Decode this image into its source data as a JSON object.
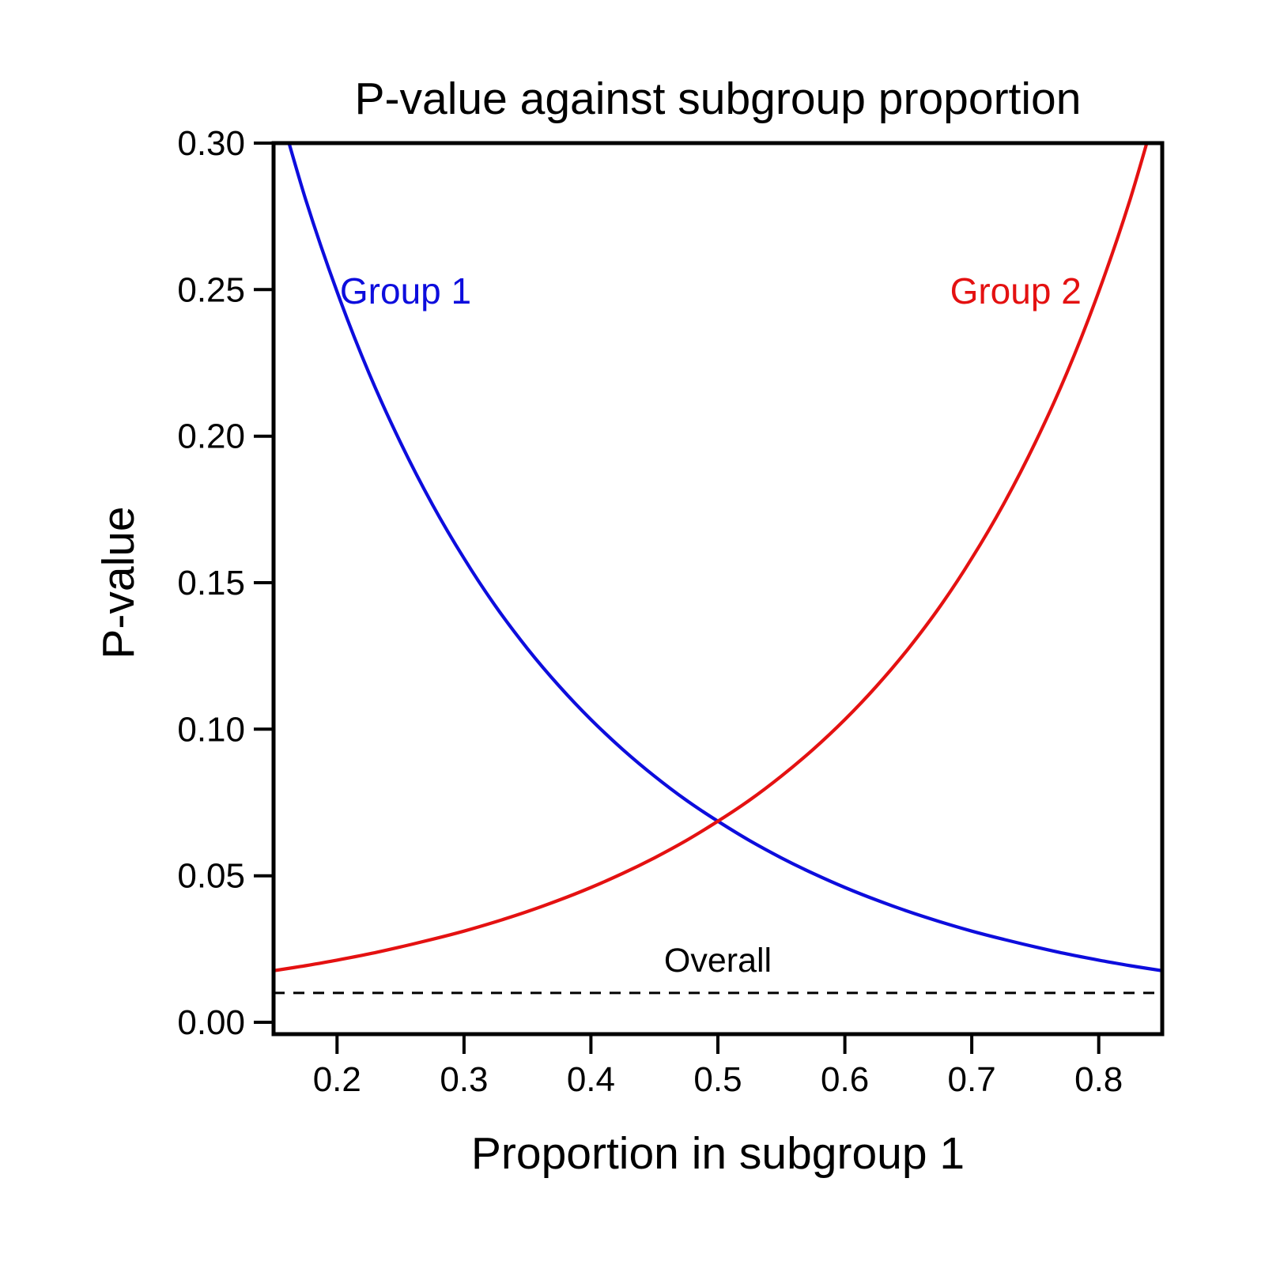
{
  "title": "P-value against subgroup proportion",
  "axes": {
    "x": {
      "label": "Proportion in subgroup 1",
      "min": 0.15,
      "max": 0.85,
      "ticks": [
        0.2,
        0.3,
        0.4,
        0.5,
        0.6,
        0.7,
        0.8
      ],
      "tick_labels": [
        "0.2",
        "0.3",
        "0.4",
        "0.5",
        "0.6",
        "0.7",
        "0.8"
      ]
    },
    "y": {
      "label": "P-value",
      "min": 0.0,
      "max": 0.3,
      "ticks": [
        0.0,
        0.05,
        0.1,
        0.15,
        0.2,
        0.25,
        0.3
      ],
      "tick_labels": [
        "0.00",
        "0.05",
        "0.10",
        "0.15",
        "0.20",
        "0.25",
        "0.30"
      ]
    }
  },
  "chart_data": {
    "type": "line",
    "title": "P-value against subgroup proportion",
    "xlabel": "Proportion in subgroup 1",
    "ylabel": "P-value",
    "xlim": [
      0.15,
      0.85
    ],
    "ylim": [
      0.0,
      0.3
    ],
    "grid": false,
    "legend": "inline-curve-labels",
    "x": [
      0.15,
      0.175,
      0.2,
      0.225,
      0.25,
      0.275,
      0.3,
      0.325,
      0.35,
      0.375,
      0.4,
      0.425,
      0.45,
      0.475,
      0.5,
      0.525,
      0.55,
      0.575,
      0.6,
      0.625,
      0.65,
      0.675,
      0.7,
      0.725,
      0.75,
      0.775,
      0.8,
      0.825,
      0.85
    ],
    "series": [
      {
        "name": "Group 1",
        "color": "#0d0ddd",
        "style": "solid",
        "values": [
          0.3185,
          0.2812,
          0.2493,
          0.2217,
          0.1978,
          0.1768,
          0.1583,
          0.1419,
          0.1275,
          0.1147,
          0.1033,
          0.0931,
          0.084,
          0.0758,
          0.0686,
          0.062,
          0.0561,
          0.0508,
          0.046,
          0.0417,
          0.0378,
          0.0343,
          0.0311,
          0.0283,
          0.0257,
          0.0233,
          0.0212,
          0.0193,
          0.0176
        ]
      },
      {
        "name": "Group 2",
        "color": "#e41111",
        "style": "solid",
        "values": [
          0.0176,
          0.0193,
          0.0212,
          0.0233,
          0.0257,
          0.0283,
          0.0311,
          0.0343,
          0.0378,
          0.0417,
          0.046,
          0.0508,
          0.0561,
          0.062,
          0.0686,
          0.0758,
          0.084,
          0.0931,
          0.1033,
          0.1147,
          0.1275,
          0.1419,
          0.1583,
          0.1768,
          0.1978,
          0.2217,
          0.2493,
          0.2812,
          0.3185
        ]
      },
      {
        "name": "Overall",
        "color": "#000000",
        "style": "dashed",
        "constant": 0.01
      }
    ],
    "annotations": [
      {
        "text": "Group 1",
        "x": 0.254,
        "y": 0.2496,
        "color": "#0d0ddd",
        "size": 46
      },
      {
        "text": "Group 2",
        "x": 0.7346,
        "y": 0.2496,
        "color": "#e41111",
        "size": 46
      },
      {
        "text": "Overall",
        "x": 0.5,
        "y": 0.021,
        "color": "#000000",
        "size": 43
      }
    ],
    "crossing_point": {
      "x": 0.5,
      "y": 0.069
    }
  }
}
